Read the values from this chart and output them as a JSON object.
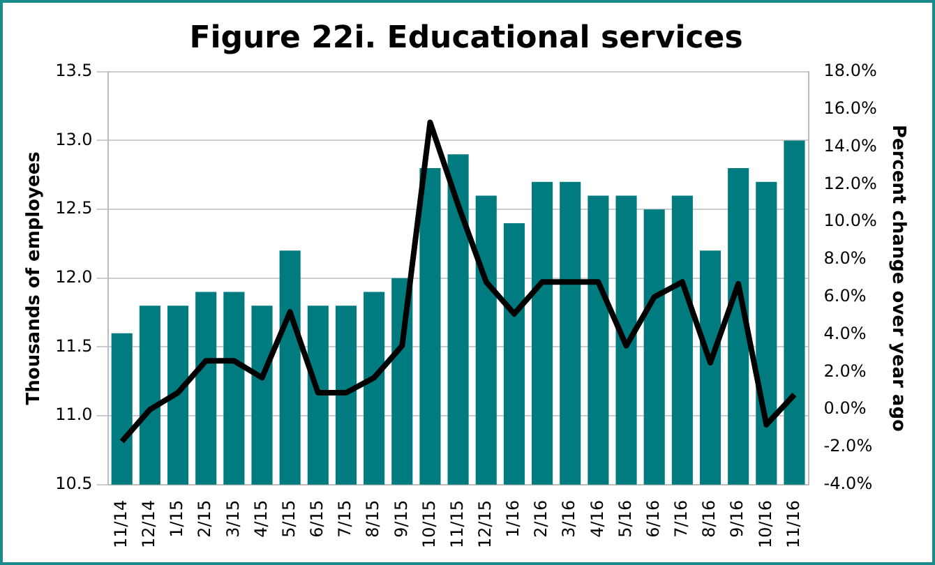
{
  "chart_data": {
    "type": "bar",
    "title": "Figure 22i. Educational services",
    "ylabel": "Thousands of employees",
    "y2label": "Percent change over year ago",
    "categories": [
      "11/14",
      "12/14",
      "1/15",
      "2/15",
      "3/15",
      "4/15",
      "5/15",
      "6/15",
      "7/15",
      "8/15",
      "9/15",
      "10/15",
      "11/15",
      "12/15",
      "1/16",
      "2/16",
      "3/16",
      "4/16",
      "5/16",
      "6/16",
      "7/16",
      "8/16",
      "9/16",
      "10/16",
      "11/16"
    ],
    "series": [
      {
        "color": "#007b7f",
        "values": [
          11.6,
          11.8,
          11.8,
          11.9,
          11.9,
          11.8,
          12.2,
          11.8,
          11.8,
          11.9,
          12.0,
          12.8,
          12.9,
          12.6,
          12.4,
          12.7,
          12.7,
          12.6,
          12.6,
          12.5,
          12.6,
          12.2,
          12.8,
          12.7,
          13.0
        ]
      },
      {
        "type": "line",
        "axis": "y2",
        "color": "#000000",
        "values": [
          -1.7,
          0.0,
          0.9,
          2.6,
          2.6,
          1.7,
          5.2,
          0.9,
          0.9,
          1.7,
          3.4,
          15.3,
          10.9,
          6.8,
          5.1,
          6.8,
          6.8,
          6.8,
          3.4,
          6.0,
          6.8,
          2.5,
          6.7,
          -0.8,
          0.8
        ]
      }
    ],
    "ylim": [
      10.5,
      13.5
    ],
    "yticks": [
      {
        "value": 10.5,
        "label": "10.5"
      },
      {
        "value": 11,
        "label": "11.0"
      },
      {
        "value": 11.5,
        "label": "11.5"
      },
      {
        "value": 12,
        "label": "12.0"
      },
      {
        "value": 12.5,
        "label": "12.5"
      },
      {
        "value": 13,
        "label": "13.0"
      },
      {
        "value": 13.5,
        "label": "13.5"
      }
    ],
    "y2lim": [
      -4,
      18
    ],
    "y2ticks": [
      {
        "value": -4,
        "label": "-4.0%"
      },
      {
        "value": -2,
        "label": "-2.0%"
      },
      {
        "value": 0,
        "label": "0.0%"
      },
      {
        "value": 2,
        "label": "2.0%"
      },
      {
        "value": 4,
        "label": "4.0%"
      },
      {
        "value": 6,
        "label": "6.0%"
      },
      {
        "value": 8,
        "label": "8.0%"
      },
      {
        "value": 10,
        "label": "10.0%"
      },
      {
        "value": 12,
        "label": "12.0%"
      },
      {
        "value": 14,
        "label": "14.0%"
      },
      {
        "value": 16,
        "label": "16.0%"
      },
      {
        "value": 18,
        "label": "18.0%"
      }
    ],
    "grid": "y",
    "legend": false,
    "marker": "none",
    "line_style": "solid"
  }
}
